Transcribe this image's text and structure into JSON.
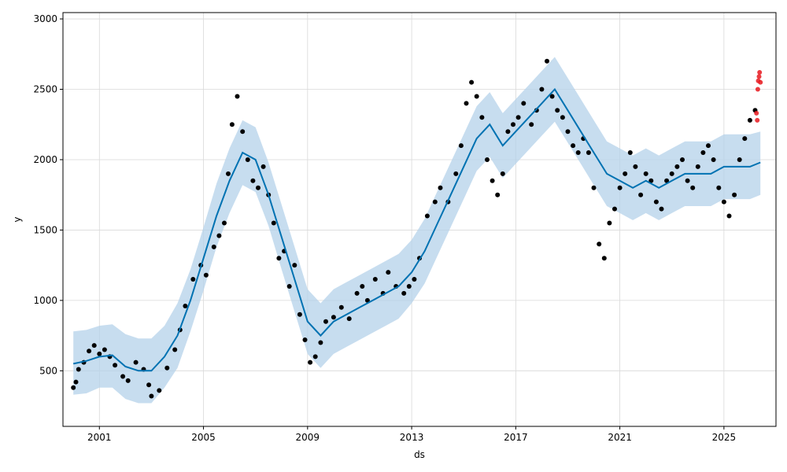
{
  "chart_data": {
    "type": "scatter",
    "title": "",
    "xlabel": "ds",
    "ylabel": "y",
    "grid": true,
    "xlim": [
      1999.6,
      2027.0
    ],
    "ylim": [
      105,
      3045
    ],
    "x_ticks": [
      {
        "value": 2001,
        "label": "2001"
      },
      {
        "value": 2005,
        "label": "2005"
      },
      {
        "value": 2009,
        "label": "2009"
      },
      {
        "value": 2013,
        "label": "2013"
      },
      {
        "value": 2017,
        "label": "2017"
      },
      {
        "value": 2021,
        "label": "2021"
      },
      {
        "value": 2025,
        "label": "2025"
      }
    ],
    "y_ticks": [
      {
        "value": 500,
        "label": "500"
      },
      {
        "value": 1000,
        "label": "1000"
      },
      {
        "value": 1500,
        "label": "1500"
      },
      {
        "value": 2000,
        "label": "2000"
      },
      {
        "value": 2500,
        "label": "2500"
      },
      {
        "value": 3000,
        "label": "3000"
      }
    ],
    "colors": {
      "observed": "#000000",
      "forecast_points": "#e8191f",
      "trend_line": "#0072b2",
      "uncertainty_band": "#b4d2e9"
    },
    "observed": {
      "x": [
        2000.0,
        2000.1,
        2000.2,
        2000.4,
        2000.6,
        2000.8,
        2001.0,
        2001.2,
        2001.4,
        2001.6,
        2001.9,
        2002.1,
        2002.4,
        2002.7,
        2002.9,
        2003.0,
        2003.3,
        2003.6,
        2003.9,
        2004.1,
        2004.3,
        2004.6,
        2004.9,
        2005.1,
        2005.4,
        2005.6,
        2005.8,
        2005.95,
        2006.1,
        2006.3,
        2006.5,
        2006.7,
        2006.9,
        2007.1,
        2007.3,
        2007.5,
        2007.7,
        2007.9,
        2008.1,
        2008.3,
        2008.5,
        2008.7,
        2008.9,
        2009.1,
        2009.3,
        2009.5,
        2009.7,
        2010.0,
        2010.3,
        2010.6,
        2010.9,
        2011.1,
        2011.3,
        2011.6,
        2011.9,
        2012.1,
        2012.4,
        2012.7,
        2012.9,
        2013.1,
        2013.3,
        2013.6,
        2013.9,
        2014.1,
        2014.4,
        2014.7,
        2014.9,
        2015.1,
        2015.3,
        2015.5,
        2015.7,
        2015.9,
        2016.1,
        2016.3,
        2016.5,
        2016.7,
        2016.9,
        2017.1,
        2017.3,
        2017.6,
        2017.8,
        2018.0,
        2018.2,
        2018.4,
        2018.6,
        2018.8,
        2019.0,
        2019.2,
        2019.4,
        2019.6,
        2019.8,
        2020.0,
        2020.2,
        2020.4,
        2020.6,
        2020.8,
        2021.0,
        2021.2,
        2021.4,
        2021.6,
        2021.8,
        2022.0,
        2022.2,
        2022.4,
        2022.6,
        2022.8,
        2023.0,
        2023.2,
        2023.4,
        2023.6,
        2023.8,
        2024.0,
        2024.2,
        2024.4,
        2024.6,
        2024.8,
        2025.0,
        2025.2,
        2025.4,
        2025.6,
        2025.8,
        2026.0,
        2026.2
      ],
      "y": [
        380,
        420,
        510,
        560,
        640,
        680,
        620,
        650,
        600,
        540,
        460,
        430,
        560,
        510,
        400,
        320,
        360,
        520,
        650,
        790,
        960,
        1150,
        1250,
        1180,
        1380,
        1460,
        1550,
        1900,
        2250,
        2450,
        2200,
        2000,
        1850,
        1800,
        1950,
        1750,
        1550,
        1300,
        1350,
        1100,
        1250,
        900,
        720,
        560,
        600,
        700,
        850,
        880,
        950,
        870,
        1050,
        1100,
        1000,
        1150,
        1050,
        1200,
        1100,
        1050,
        1100,
        1150,
        1300,
        1600,
        1700,
        1800,
        1700,
        1900,
        2100,
        2400,
        2550,
        2450,
        2300,
        2000,
        1850,
        1750,
        1900,
        2200,
        2250,
        2300,
        2400,
        2250,
        2350,
        2500,
        2700,
        2450,
        2350,
        2300,
        2200,
        2100,
        2050,
        2150,
        2050,
        1800,
        1400,
        1300,
        1550,
        1650,
        1800,
        1900,
        2050,
        1950,
        1750,
        1900,
        1850,
        1700,
        1650,
        1850,
        1900,
        1950,
        2000,
        1850,
        1800,
        1950,
        2050,
        2100,
        2000,
        1800,
        1700,
        1600,
        1750,
        2000,
        2150,
        2280,
        2350
      ]
    },
    "forecast_points": {
      "x": [
        2026.25,
        2026.28,
        2026.3,
        2026.32,
        2026.35,
        2026.37,
        2026.4
      ],
      "y": [
        2330,
        2280,
        2500,
        2560,
        2590,
        2620,
        2550
      ]
    },
    "trend": {
      "x": [
        2000.0,
        2000.5,
        2001.0,
        2001.5,
        2002.0,
        2002.5,
        2003.0,
        2003.5,
        2004.0,
        2004.5,
        2005.0,
        2005.5,
        2006.0,
        2006.5,
        2007.0,
        2007.5,
        2008.0,
        2008.5,
        2009.0,
        2009.5,
        2010.0,
        2010.5,
        2011.0,
        2011.5,
        2012.0,
        2012.5,
        2013.0,
        2013.5,
        2014.0,
        2014.5,
        2015.0,
        2015.5,
        2016.0,
        2016.5,
        2017.0,
        2017.5,
        2018.0,
        2018.5,
        2019.0,
        2019.5,
        2020.0,
        2020.5,
        2021.0,
        2021.5,
        2022.0,
        2022.5,
        2023.0,
        2023.5,
        2024.0,
        2024.5,
        2025.0,
        2025.5,
        2026.0,
        2026.4
      ],
      "y": [
        550,
        570,
        600,
        610,
        530,
        500,
        500,
        600,
        750,
        1000,
        1300,
        1600,
        1850,
        2050,
        2000,
        1750,
        1450,
        1150,
        850,
        750,
        850,
        900,
        950,
        1000,
        1050,
        1100,
        1200,
        1350,
        1550,
        1750,
        1950,
        2150,
        2250,
        2100,
        2200,
        2300,
        2400,
        2500,
        2350,
        2200,
        2050,
        1900,
        1850,
        1800,
        1850,
        1800,
        1850,
        1900,
        1900,
        1900,
        1950,
        1950,
        1950,
        1980
      ]
    },
    "band": {
      "x": [
        2000.0,
        2000.5,
        2001.0,
        2001.5,
        2002.0,
        2002.5,
        2003.0,
        2003.5,
        2004.0,
        2004.5,
        2005.0,
        2005.5,
        2006.0,
        2006.5,
        2007.0,
        2007.5,
        2008.0,
        2008.5,
        2009.0,
        2009.5,
        2010.0,
        2010.5,
        2011.0,
        2011.5,
        2012.0,
        2012.5,
        2013.0,
        2013.5,
        2014.0,
        2014.5,
        2015.0,
        2015.5,
        2016.0,
        2016.5,
        2017.0,
        2017.5,
        2018.0,
        2018.5,
        2019.0,
        2019.5,
        2020.0,
        2020.5,
        2021.0,
        2021.5,
        2022.0,
        2022.5,
        2023.0,
        2023.5,
        2024.0,
        2024.5,
        2025.0,
        2025.5,
        2026.0,
        2026.4
      ],
      "upper": [
        780,
        790,
        820,
        830,
        760,
        730,
        730,
        820,
        980,
        1220,
        1520,
        1830,
        2080,
        2280,
        2230,
        1980,
        1680,
        1380,
        1080,
        980,
        1080,
        1130,
        1180,
        1230,
        1280,
        1330,
        1430,
        1580,
        1780,
        1980,
        2180,
        2380,
        2480,
        2330,
        2430,
        2530,
        2630,
        2730,
        2580,
        2430,
        2280,
        2130,
        2080,
        2030,
        2080,
        2030,
        2080,
        2130,
        2130,
        2130,
        2180,
        2180,
        2180,
        2200
      ],
      "lower": [
        330,
        340,
        380,
        380,
        300,
        270,
        270,
        380,
        520,
        780,
        1070,
        1380,
        1620,
        1820,
        1770,
        1530,
        1220,
        920,
        620,
        520,
        620,
        670,
        720,
        770,
        820,
        870,
        980,
        1120,
        1320,
        1520,
        1720,
        1920,
        2020,
        1870,
        1970,
        2070,
        2170,
        2270,
        2120,
        1970,
        1820,
        1670,
        1620,
        1570,
        1620,
        1570,
        1620,
        1670,
        1670,
        1670,
        1720,
        1720,
        1720,
        1750
      ]
    }
  }
}
